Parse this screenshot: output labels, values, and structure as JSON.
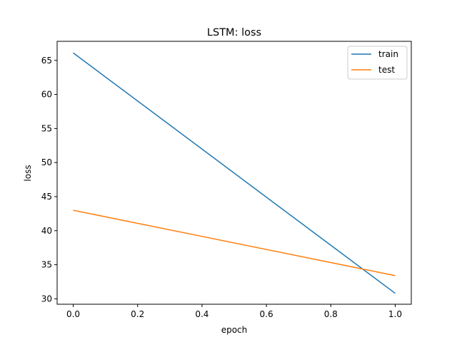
{
  "chart_data": {
    "type": "line",
    "title": "LSTM: loss",
    "xlabel": "epoch",
    "ylabel": "loss",
    "x": [
      0.0,
      1.0
    ],
    "xlim": [
      -0.05,
      1.05
    ],
    "ylim": [
      29.2,
      67.8
    ],
    "xticks": [
      0.0,
      0.2,
      0.4,
      0.6,
      0.8,
      1.0
    ],
    "xtick_labels": [
      "0.0",
      "0.2",
      "0.4",
      "0.6",
      "0.8",
      "1.0"
    ],
    "yticks": [
      30,
      35,
      40,
      45,
      50,
      55,
      60,
      65
    ],
    "ytick_labels": [
      "30",
      "35",
      "40",
      "45",
      "50",
      "55",
      "60",
      "65"
    ],
    "series": [
      {
        "name": "train",
        "color": "#1f77b4",
        "values": [
          66.1,
          30.8
        ]
      },
      {
        "name": "test",
        "color": "#ff7f0e",
        "values": [
          43.0,
          33.4
        ]
      }
    ],
    "legend_position": "top-right",
    "grid": false
  }
}
